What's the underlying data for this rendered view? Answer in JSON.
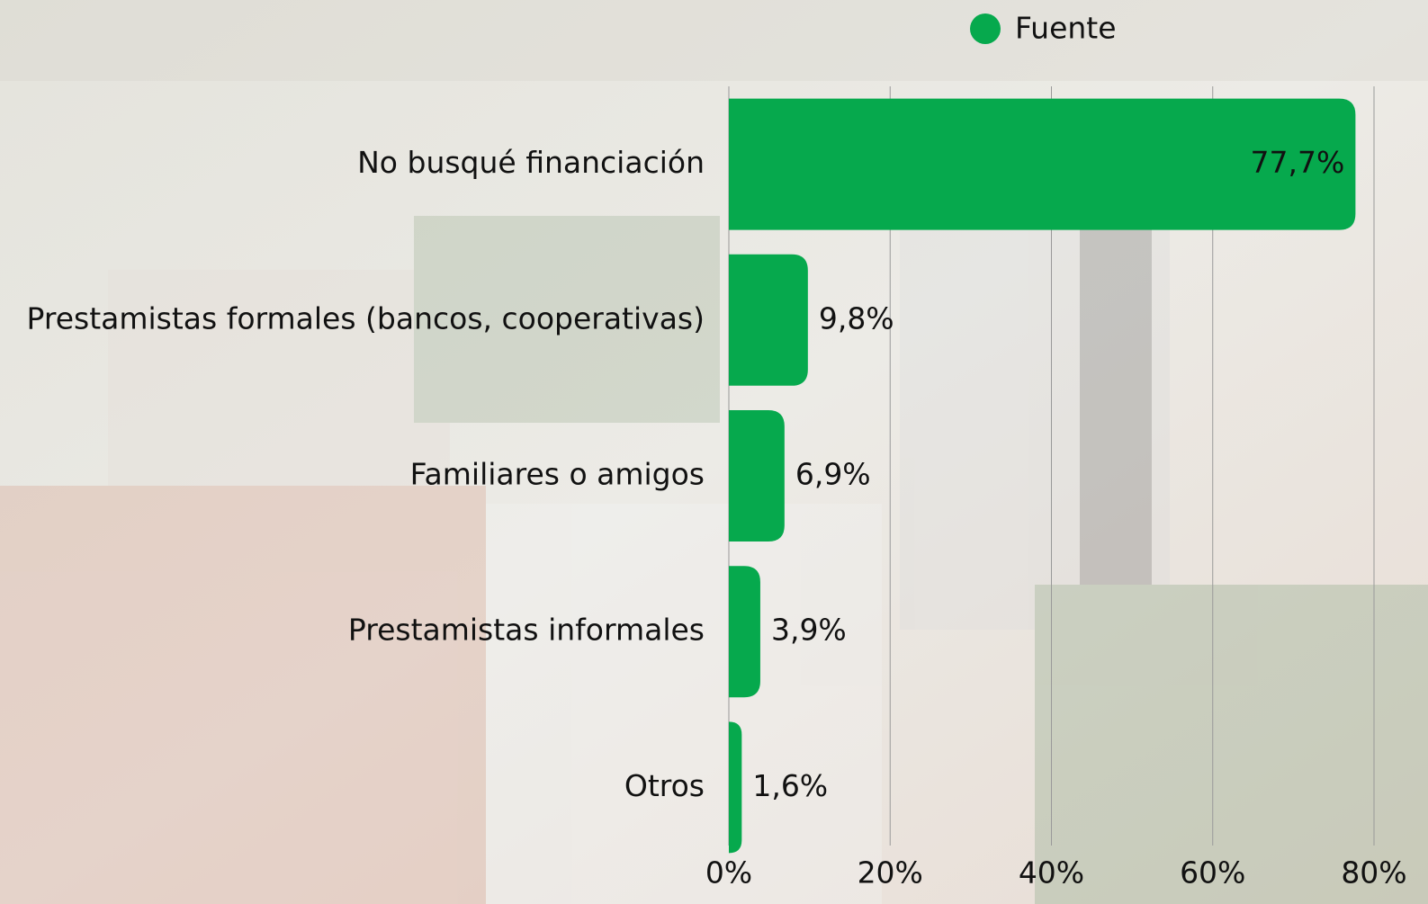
{
  "chart_data": {
    "type": "bar",
    "orientation": "horizontal",
    "categories": [
      "No busqué financiación",
      "Prestamistas formales (bancos, cooperativas)",
      "Familiares o amigos",
      "Prestamistas informales",
      "Otros"
    ],
    "series": [
      {
        "name": "Fuente",
        "color": "#06a94d",
        "values": [
          77.7,
          9.8,
          6.9,
          3.9,
          1.6
        ],
        "value_labels": [
          "77,7%",
          "9,8%",
          "6,9%",
          "3,9%",
          "1,6%"
        ]
      }
    ],
    "xlim": [
      0,
      80
    ],
    "xticks": [
      {
        "value": 0,
        "label": "0%"
      },
      {
        "value": 20,
        "label": "20%"
      },
      {
        "value": 40,
        "label": "40%"
      },
      {
        "value": 60,
        "label": "60%"
      },
      {
        "value": 80,
        "label": "80%"
      }
    ],
    "grid": true,
    "legend": "top"
  }
}
